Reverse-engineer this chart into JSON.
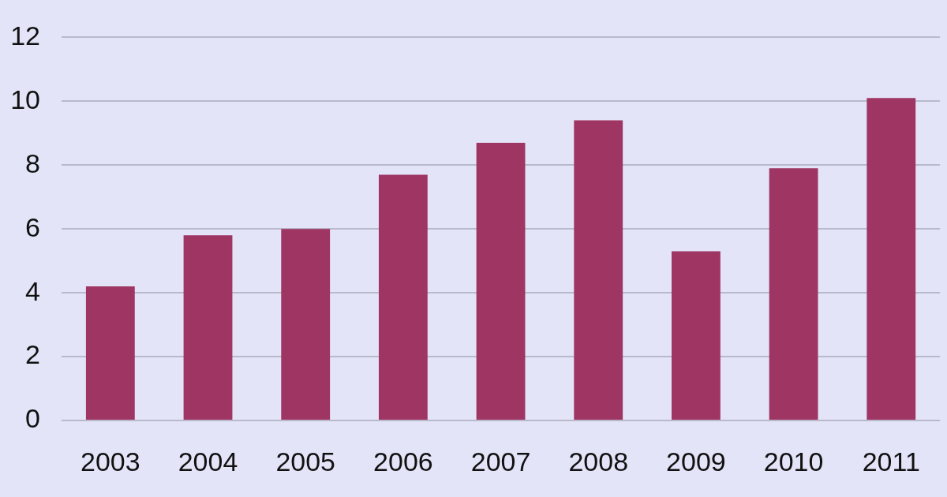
{
  "chart_data": {
    "type": "bar",
    "categories": [
      "2003",
      "2004",
      "2005",
      "2006",
      "2007",
      "2008",
      "2009",
      "2010",
      "2011"
    ],
    "values": [
      4.2,
      5.8,
      6.0,
      7.7,
      8.7,
      9.4,
      5.3,
      7.9,
      10.1
    ],
    "color": "#9e3563",
    "ylim": [
      0,
      12
    ],
    "yticks": [
      0,
      2,
      4,
      6,
      8,
      10,
      12
    ],
    "grid": "y"
  }
}
